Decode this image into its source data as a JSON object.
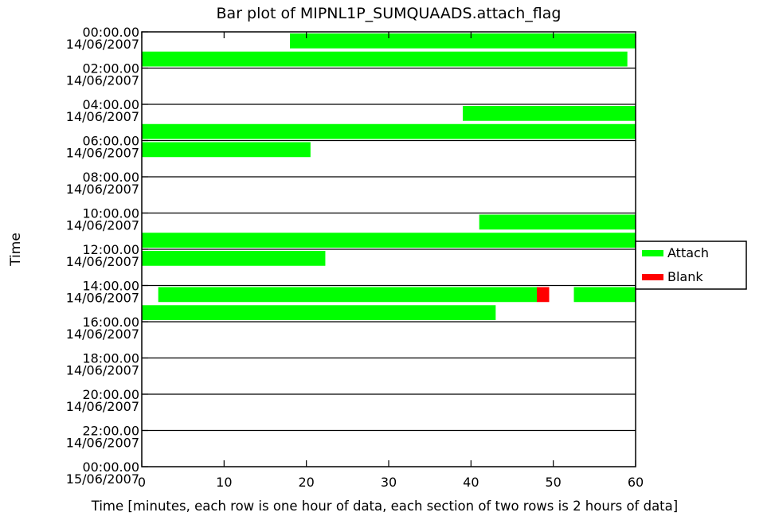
{
  "chart_data": {
    "type": "bar",
    "title": "Bar plot of MIPNL1P_SUMQUAADS.attach_flag",
    "xlabel": "Time [minutes, each row is one hour of data, each section of two rows is 2 hours of data]",
    "ylabel": "Time",
    "xlim": [
      0,
      60
    ],
    "x_ticks": [
      "0",
      "10",
      "20",
      "30",
      "40",
      "50",
      "60"
    ],
    "row_count": 24,
    "y_tick_labels": [
      {
        "time": "00:00.00",
        "date": "14/06/2007"
      },
      {
        "time": "02:00.00",
        "date": "14/06/2007"
      },
      {
        "time": "04:00.00",
        "date": "14/06/2007"
      },
      {
        "time": "06:00.00",
        "date": "14/06/2007"
      },
      {
        "time": "08:00.00",
        "date": "14/06/2007"
      },
      {
        "time": "10:00.00",
        "date": "14/06/2007"
      },
      {
        "time": "12:00.00",
        "date": "14/06/2007"
      },
      {
        "time": "14:00.00",
        "date": "14/06/2007"
      },
      {
        "time": "16:00.00",
        "date": "14/06/2007"
      },
      {
        "time": "18:00.00",
        "date": "14/06/2007"
      },
      {
        "time": "20:00.00",
        "date": "14/06/2007"
      },
      {
        "time": "22:00.00",
        "date": "14/06/2007"
      },
      {
        "time": "00:00.00",
        "date": "15/06/2007"
      }
    ],
    "legend": {
      "placement": "right",
      "entries": [
        {
          "label": "Attach",
          "color": "#00ff00"
        },
        {
          "label": "Blank",
          "color": "#ff0000"
        }
      ]
    },
    "series": [
      {
        "name": "Attach",
        "color": "#00ff00",
        "bars": [
          {
            "row": 0,
            "start": 18,
            "end": 60
          },
          {
            "row": 1,
            "start": 0,
            "end": 59
          },
          {
            "row": 4,
            "start": 39,
            "end": 60
          },
          {
            "row": 5,
            "start": 0,
            "end": 60
          },
          {
            "row": 6,
            "start": 0,
            "end": 20.5
          },
          {
            "row": 10,
            "start": 41,
            "end": 60
          },
          {
            "row": 11,
            "start": 0,
            "end": 60
          },
          {
            "row": 12,
            "start": 0,
            "end": 22.3
          },
          {
            "row": 14,
            "start": 2,
            "end": 48
          },
          {
            "row": 14,
            "start": 52.5,
            "end": 60
          },
          {
            "row": 15,
            "start": 0,
            "end": 43
          }
        ]
      },
      {
        "name": "Blank",
        "color": "#ff0000",
        "bars": [
          {
            "row": 14,
            "start": 48,
            "end": 49.5
          }
        ]
      }
    ]
  }
}
